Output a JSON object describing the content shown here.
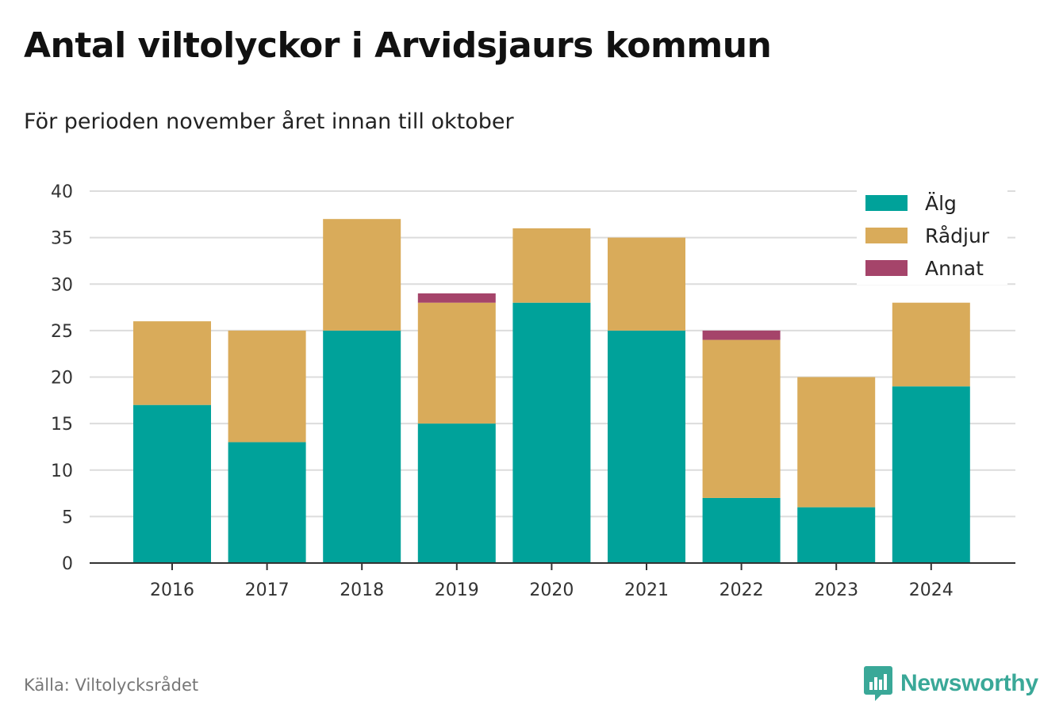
{
  "title": "Antal viltolyckor i Arvidsjaurs kommun",
  "subtitle": "För perioden november året innan till oktober",
  "source": "Källa: Viltolycksrådet",
  "brand": {
    "name": "Newsworthy",
    "icon": "newsworthy-logo-icon"
  },
  "chart_data": {
    "type": "bar",
    "stacked": true,
    "categories": [
      "2016",
      "2017",
      "2018",
      "2019",
      "2020",
      "2021",
      "2022",
      "2023",
      "2024"
    ],
    "series": [
      {
        "name": "Älg",
        "color": "#00a29a",
        "values": [
          17,
          13,
          25,
          15,
          28,
          25,
          7,
          6,
          19
        ]
      },
      {
        "name": "Rådjur",
        "color": "#d9ab5a",
        "values": [
          9,
          12,
          12,
          13,
          8,
          10,
          17,
          14,
          9
        ]
      },
      {
        "name": "Annat",
        "color": "#a5446a",
        "values": [
          0,
          0,
          0,
          1,
          0,
          0,
          1,
          0,
          0
        ]
      }
    ],
    "ylim": [
      0,
      40
    ],
    "yticks": [
      0,
      5,
      10,
      15,
      20,
      25,
      30,
      35,
      40
    ],
    "xlabel": "",
    "ylabel": "",
    "grid": true,
    "legend_position": "top-right"
  }
}
